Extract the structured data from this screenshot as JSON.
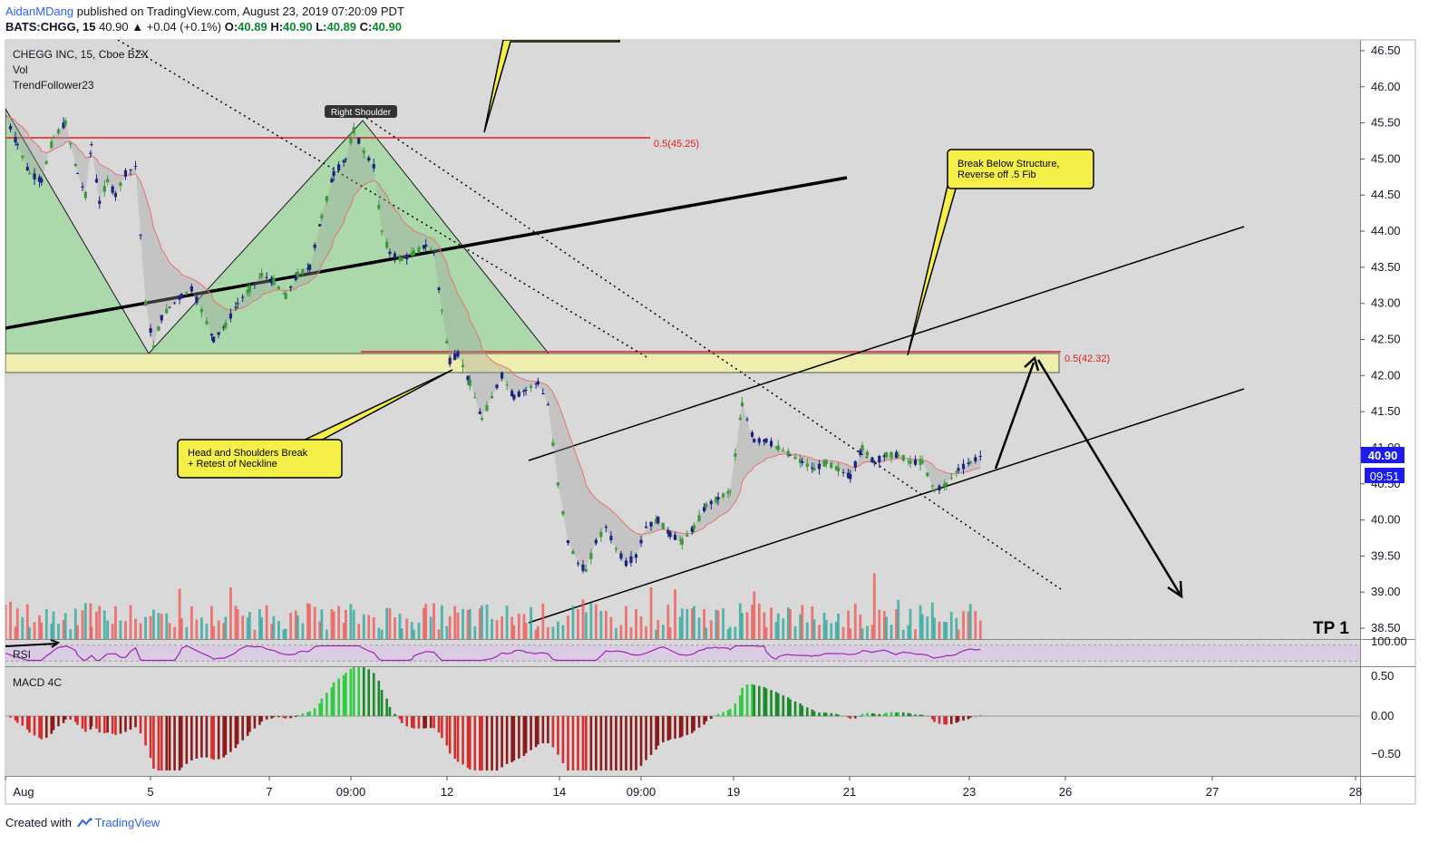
{
  "header": {
    "author": "AidanMDang",
    "published_text": " published on TradingView.com, August 23, 2019 07:20:09 PDT",
    "symbol_line": "BATS:CHGG, 15",
    "change": "40.90 ▲ +0.04 (+0.1%)",
    "o_label": "O:",
    "o_val": "40.89",
    "h_label": "H:",
    "h_val": "40.90",
    "l_label": "L:",
    "l_val": "40.89",
    "c_label": "C:",
    "c_val": "40.90"
  },
  "legend": {
    "title": "CHEGG INC, 15, Cboe BZX",
    "vol": "Vol",
    "indicator": "TrendFollower23"
  },
  "footer": {
    "created_with": "Created with",
    "brand": "TradingView"
  },
  "colors": {
    "up": "#26a69a",
    "down": "#ef5350",
    "candle_up": "#3c9a3c",
    "candle_down": "#1a237e",
    "fib_line": "#e51c1c",
    "zone": "#f0f0a8",
    "triangle": "#9bd89b",
    "rsi_bg": "#d9c9e5",
    "rsi_line": "#9c27b0",
    "macd_green": "#2ecc40",
    "macd_red": "#d32f2f",
    "price_box": "#1c1cf0"
  },
  "chart_data": [
    {
      "type": "candlestick",
      "title": "CHEGG INC, 15, Cboe BZX",
      "x_ticks": [
        "Aug",
        "5",
        "7",
        "09:00",
        "12",
        "14",
        "09:00",
        "19",
        "21",
        "23",
        "26",
        "27",
        "28"
      ],
      "y_ticks": [
        "46.50",
        "46.00",
        "45.50",
        "45.00",
        "44.50",
        "44.00",
        "43.50",
        "43.00",
        "42.50",
        "42.00",
        "41.50",
        "41.00",
        "40.50",
        "40.00",
        "39.50",
        "39.00",
        "38.50"
      ],
      "ylim": [
        38.35,
        46.65
      ],
      "last_price": "40.90",
      "countdown": "09:51",
      "price_path": [
        [
          0.0,
          45.6
        ],
        [
          0.6,
          45.2
        ],
        [
          1.2,
          44.8
        ],
        [
          1.8,
          44.7
        ],
        [
          2.4,
          45.3
        ],
        [
          3.0,
          45.5
        ],
        [
          3.6,
          44.8
        ],
        [
          4.0,
          44.5
        ],
        [
          4.3,
          45.2
        ],
        [
          4.7,
          44.4
        ],
        [
          5.1,
          44.7
        ],
        [
          5.5,
          44.5
        ],
        [
          6.0,
          44.8
        ],
        [
          6.5,
          44.9
        ],
        [
          7.0,
          43.0
        ],
        [
          7.4,
          42.4
        ],
        [
          7.8,
          42.8
        ],
        [
          8.2,
          42.95
        ],
        [
          8.8,
          43.1
        ],
        [
          9.3,
          43.2
        ],
        [
          9.8,
          42.9
        ],
        [
          10.4,
          42.5
        ],
        [
          11.0,
          42.7
        ],
        [
          11.6,
          43.0
        ],
        [
          12.2,
          43.2
        ],
        [
          12.8,
          43.4
        ],
        [
          13.4,
          43.3
        ],
        [
          14.0,
          43.1
        ],
        [
          14.6,
          43.4
        ],
        [
          15.2,
          43.5
        ],
        [
          15.8,
          44.2
        ],
        [
          16.4,
          44.8
        ],
        [
          17.0,
          45.0
        ],
        [
          17.4,
          45.4
        ],
        [
          17.9,
          45.1
        ],
        [
          18.4,
          44.9
        ],
        [
          18.8,
          44.0
        ],
        [
          19.2,
          43.7
        ],
        [
          19.8,
          43.6
        ],
        [
          20.4,
          43.7
        ],
        [
          21.0,
          43.8
        ],
        [
          21.4,
          43.7
        ],
        [
          21.8,
          42.9
        ],
        [
          22.2,
          42.2
        ],
        [
          22.6,
          42.3
        ],
        [
          23.2,
          41.9
        ],
        [
          23.8,
          41.4
        ],
        [
          24.3,
          41.7
        ],
        [
          24.8,
          42.0
        ],
        [
          25.4,
          41.7
        ],
        [
          26.0,
          41.8
        ],
        [
          26.6,
          41.9
        ],
        [
          27.1,
          41.6
        ],
        [
          27.6,
          40.5
        ],
        [
          28.1,
          39.7
        ],
        [
          28.6,
          39.4
        ],
        [
          29.0,
          39.3
        ],
        [
          29.5,
          39.7
        ],
        [
          30.0,
          39.9
        ],
        [
          30.5,
          39.6
        ],
        [
          31.0,
          39.4
        ],
        [
          31.5,
          39.5
        ],
        [
          32.0,
          39.9
        ],
        [
          32.6,
          40.0
        ],
        [
          33.2,
          39.8
        ],
        [
          33.8,
          39.7
        ],
        [
          34.4,
          39.9
        ],
        [
          35.0,
          40.2
        ],
        [
          35.6,
          40.3
        ],
        [
          36.2,
          40.4
        ],
        [
          36.8,
          41.6
        ],
        [
          37.4,
          41.1
        ],
        [
          38.0,
          41.1
        ],
        [
          38.6,
          41.0
        ],
        [
          39.2,
          40.9
        ],
        [
          39.8,
          40.8
        ],
        [
          40.4,
          40.7
        ],
        [
          41.0,
          40.8
        ],
        [
          41.6,
          40.7
        ],
        [
          42.2,
          40.6
        ],
        [
          42.8,
          41.0
        ],
        [
          43.4,
          40.8
        ],
        [
          44.0,
          40.9
        ],
        [
          44.6,
          40.9
        ],
        [
          45.2,
          40.8
        ],
        [
          45.8,
          40.8
        ],
        [
          46.4,
          40.4
        ],
        [
          47.0,
          40.5
        ],
        [
          47.6,
          40.7
        ],
        [
          48.2,
          40.8
        ],
        [
          48.8,
          40.9
        ]
      ]
    }
  ],
  "annotations": {
    "fib_upper": "0.5(45.25)",
    "fib_lower": "0.5(42.32)",
    "right_shoulder": "Right Shoulder",
    "callout_break_line1": "Break Below Structure,",
    "callout_break_line2": "Reverse off .5 Fib",
    "callout_hs_line1": "Head and Shoulders Break",
    "callout_hs_line2": "+ Retest of Neckline",
    "tp": "TP 1"
  },
  "rsi": {
    "label": "RSI",
    "tick": "100.00"
  },
  "macd": {
    "label": "MACD 4C",
    "ticks": [
      "0.50",
      "0.00",
      "−0.50"
    ]
  }
}
